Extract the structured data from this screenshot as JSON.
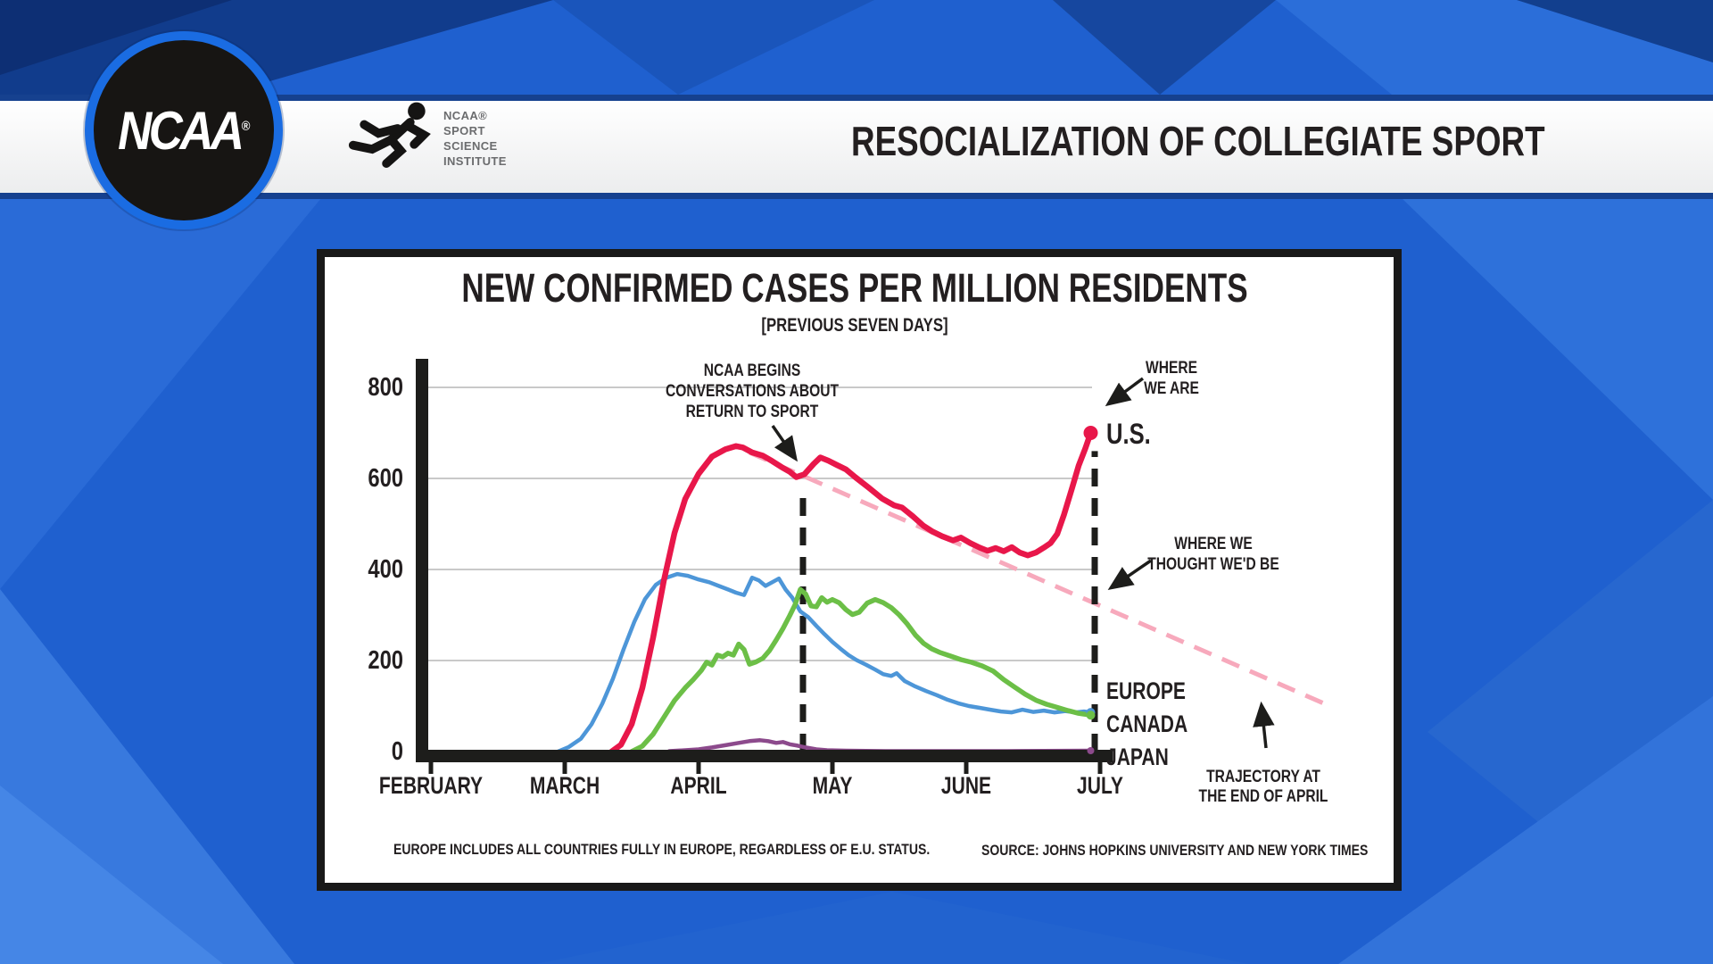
{
  "header": {
    "title": "RESOCIALIZATION OF COLLEGIATE SPORT",
    "ncaa_wordmark": "NCAA",
    "registered_mark": "®",
    "institute": {
      "line1": "NCAA®",
      "line2": "SPORT",
      "line3": "SCIENCE",
      "line4": "INSTITUTE"
    }
  },
  "chart": {
    "footnote": "EUROPE INCLUDES ALL COUNTRIES FULLY IN EUROPE, REGARDLESS OF E.U. STATUS.",
    "source": "SOURCE: JOHNS HOPKINS UNIVERSITY AND NEW YORK TIMES",
    "annotations": {
      "ncaa_begins": {
        "line1": "NCAA BEGINS",
        "line2": "CONVERSATIONS ABOUT",
        "line3": "RETURN TO SPORT"
      },
      "where_we_are": {
        "line1": "WHERE",
        "line2": "WE ARE"
      },
      "us_label": "U.S.",
      "where_we_thought": {
        "line1": "WHERE WE",
        "line2": "THOUGHT WE'D BE"
      },
      "europe_label": "EUROPE",
      "canada_label": "CANADA",
      "japan_label": "JAPAN",
      "trajectory": {
        "line1": "TRAJECTORY AT",
        "line2": "THE END OF APRIL"
      }
    }
  },
  "chart_data": {
    "type": "line",
    "title": "NEW CONFIRMED CASES PER MILLION RESIDENTS",
    "subtitle": "[PREVIOUS SEVEN DAYS]",
    "xlabel": "",
    "ylabel": "",
    "x_ticks": [
      "FEBRUARY",
      "MARCH",
      "APRIL",
      "MAY",
      "JUNE",
      "JULY"
    ],
    "y_ticks": [
      0,
      200,
      400,
      600,
      800
    ],
    "ylim": [
      0,
      800
    ],
    "grid": "horizontal",
    "x_unit": "months (February=0 … July=5)",
    "colors": {
      "us": "#e8174a",
      "canada": "#4d96d8",
      "europe": "#6cbf47",
      "japan": "#8c4a8c",
      "trajectory": "#f7a9bc",
      "axis": "#1d1d1b",
      "gridline": "#c9c9c9"
    },
    "vlines": [
      {
        "label": "end of April (NCAA conversations begin)",
        "x_month": 2.78,
        "y_from": 0,
        "y_to": 576
      },
      {
        "label": "July (where we are)",
        "x_month": 4.96,
        "y_from": 0,
        "y_to": 660
      }
    ],
    "series": [
      {
        "name": "U.S.",
        "color": "#e8174a",
        "points": [
          [
            1.35,
            0
          ],
          [
            1.42,
            15
          ],
          [
            1.5,
            60
          ],
          [
            1.58,
            140
          ],
          [
            1.66,
            250
          ],
          [
            1.74,
            375
          ],
          [
            1.82,
            480
          ],
          [
            1.9,
            555
          ],
          [
            2.0,
            610
          ],
          [
            2.1,
            648
          ],
          [
            2.2,
            664
          ],
          [
            2.28,
            671
          ],
          [
            2.33,
            668
          ],
          [
            2.4,
            657
          ],
          [
            2.48,
            650
          ],
          [
            2.55,
            638
          ],
          [
            2.62,
            625
          ],
          [
            2.68,
            615
          ],
          [
            2.73,
            603
          ],
          [
            2.79,
            609
          ],
          [
            2.86,
            632
          ],
          [
            2.91,
            646
          ],
          [
            2.97,
            639
          ],
          [
            3.03,
            630
          ],
          [
            3.1,
            620
          ],
          [
            3.17,
            603
          ],
          [
            3.27,
            580
          ],
          [
            3.37,
            556
          ],
          [
            3.46,
            541
          ],
          [
            3.52,
            536
          ],
          [
            3.6,
            517
          ],
          [
            3.68,
            496
          ],
          [
            3.75,
            483
          ],
          [
            3.82,
            473
          ],
          [
            3.9,
            464
          ],
          [
            3.96,
            470
          ],
          [
            4.03,
            458
          ],
          [
            4.1,
            448
          ],
          [
            4.16,
            441
          ],
          [
            4.22,
            447
          ],
          [
            4.28,
            440
          ],
          [
            4.34,
            449
          ],
          [
            4.4,
            437
          ],
          [
            4.46,
            431
          ],
          [
            4.52,
            437
          ],
          [
            4.58,
            448
          ],
          [
            4.63,
            458
          ],
          [
            4.68,
            478
          ],
          [
            4.73,
            520
          ],
          [
            4.79,
            578
          ],
          [
            4.84,
            628
          ],
          [
            4.89,
            666
          ],
          [
            4.93,
            700
          ]
        ]
      },
      {
        "name": "CANADA",
        "color": "#4d96d8",
        "points": [
          [
            0.95,
            0
          ],
          [
            1.03,
            10
          ],
          [
            1.12,
            28
          ],
          [
            1.2,
            60
          ],
          [
            1.28,
            105
          ],
          [
            1.36,
            160
          ],
          [
            1.44,
            225
          ],
          [
            1.52,
            285
          ],
          [
            1.6,
            335
          ],
          [
            1.68,
            366
          ],
          [
            1.76,
            382
          ],
          [
            1.84,
            390
          ],
          [
            1.92,
            386
          ],
          [
            2.0,
            378
          ],
          [
            2.08,
            372
          ],
          [
            2.15,
            364
          ],
          [
            2.22,
            356
          ],
          [
            2.28,
            349
          ],
          [
            2.34,
            344
          ],
          [
            2.4,
            382
          ],
          [
            2.45,
            376
          ],
          [
            2.5,
            364
          ],
          [
            2.55,
            372
          ],
          [
            2.6,
            380
          ],
          [
            2.65,
            356
          ],
          [
            2.7,
            338
          ],
          [
            2.76,
            308
          ],
          [
            2.82,
            295
          ],
          [
            2.88,
            276
          ],
          [
            2.94,
            258
          ],
          [
            3.0,
            241
          ],
          [
            3.06,
            226
          ],
          [
            3.12,
            212
          ],
          [
            3.18,
            201
          ],
          [
            3.25,
            191
          ],
          [
            3.32,
            180
          ],
          [
            3.38,
            170
          ],
          [
            3.44,
            166
          ],
          [
            3.48,
            172
          ],
          [
            3.54,
            155
          ],
          [
            3.62,
            143
          ],
          [
            3.7,
            133
          ],
          [
            3.78,
            124
          ],
          [
            3.86,
            114
          ],
          [
            3.94,
            106
          ],
          [
            4.02,
            100
          ],
          [
            4.1,
            96
          ],
          [
            4.18,
            92
          ],
          [
            4.26,
            88
          ],
          [
            4.34,
            86
          ],
          [
            4.42,
            92
          ],
          [
            4.5,
            87
          ],
          [
            4.58,
            90
          ],
          [
            4.66,
            86
          ],
          [
            4.74,
            89
          ],
          [
            4.82,
            86
          ],
          [
            4.88,
            88
          ],
          [
            4.93,
            86
          ]
        ]
      },
      {
        "name": "EUROPE",
        "color": "#6cbf47",
        "points": [
          [
            1.5,
            0
          ],
          [
            1.58,
            12
          ],
          [
            1.66,
            38
          ],
          [
            1.74,
            75
          ],
          [
            1.82,
            112
          ],
          [
            1.9,
            140
          ],
          [
            1.96,
            158
          ],
          [
            2.02,
            178
          ],
          [
            2.06,
            196
          ],
          [
            2.1,
            190
          ],
          [
            2.14,
            212
          ],
          [
            2.18,
            208
          ],
          [
            2.22,
            216
          ],
          [
            2.26,
            212
          ],
          [
            2.3,
            236
          ],
          [
            2.34,
            224
          ],
          [
            2.38,
            192
          ],
          [
            2.43,
            197
          ],
          [
            2.48,
            205
          ],
          [
            2.53,
            222
          ],
          [
            2.58,
            245
          ],
          [
            2.63,
            270
          ],
          [
            2.68,
            298
          ],
          [
            2.72,
            322
          ],
          [
            2.76,
            356
          ],
          [
            2.8,
            346
          ],
          [
            2.84,
            320
          ],
          [
            2.88,
            318
          ],
          [
            2.92,
            338
          ],
          [
            2.96,
            328
          ],
          [
            3.0,
            334
          ],
          [
            3.05,
            327
          ],
          [
            3.1,
            312
          ],
          [
            3.15,
            301
          ],
          [
            3.2,
            306
          ],
          [
            3.26,
            326
          ],
          [
            3.32,
            334
          ],
          [
            3.38,
            327
          ],
          [
            3.44,
            316
          ],
          [
            3.5,
            300
          ],
          [
            3.56,
            280
          ],
          [
            3.62,
            256
          ],
          [
            3.68,
            238
          ],
          [
            3.74,
            226
          ],
          [
            3.8,
            218
          ],
          [
            3.88,
            210
          ],
          [
            3.96,
            202
          ],
          [
            4.04,
            196
          ],
          [
            4.12,
            188
          ],
          [
            4.2,
            177
          ],
          [
            4.28,
            158
          ],
          [
            4.36,
            142
          ],
          [
            4.44,
            126
          ],
          [
            4.52,
            113
          ],
          [
            4.6,
            104
          ],
          [
            4.68,
            97
          ],
          [
            4.76,
            90
          ],
          [
            4.84,
            84
          ],
          [
            4.93,
            80
          ]
        ]
      },
      {
        "name": "JAPAN",
        "color": "#8c4a8c",
        "points": [
          [
            1.78,
            1
          ],
          [
            1.9,
            3
          ],
          [
            2.0,
            5
          ],
          [
            2.1,
            9
          ],
          [
            2.2,
            14
          ],
          [
            2.3,
            19
          ],
          [
            2.38,
            23
          ],
          [
            2.46,
            25
          ],
          [
            2.52,
            23
          ],
          [
            2.58,
            19
          ],
          [
            2.63,
            21
          ],
          [
            2.68,
            16
          ],
          [
            2.74,
            13
          ],
          [
            2.8,
            9
          ],
          [
            2.88,
            5
          ],
          [
            2.96,
            3
          ],
          [
            3.1,
            2
          ],
          [
            3.4,
            1
          ],
          [
            3.8,
            1
          ],
          [
            4.3,
            1
          ],
          [
            4.93,
            2
          ]
        ]
      },
      {
        "name": "WHERE WE THOUGHT WE'D BE (TRAJECTORY AT THE END OF APRIL)",
        "color": "#f7a9bc",
        "dashed": true,
        "points": [
          [
            2.38,
            657
          ],
          [
            6.74,
            97
          ]
        ]
      }
    ]
  }
}
